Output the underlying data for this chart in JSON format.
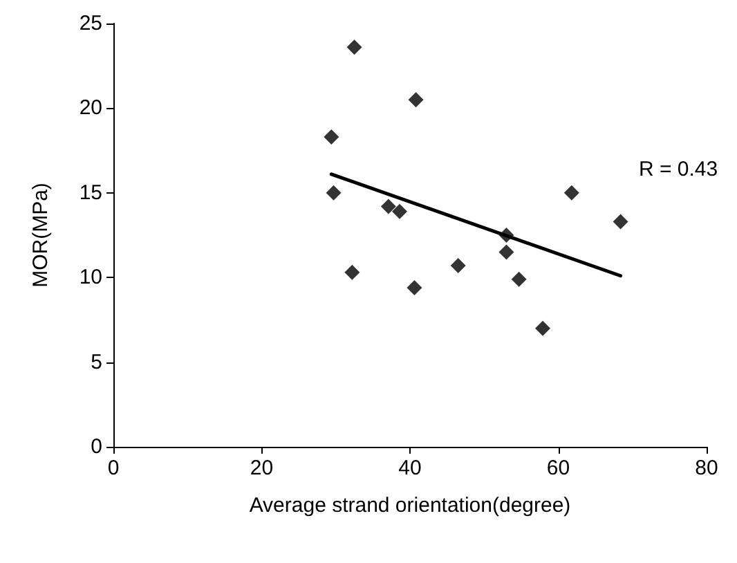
{
  "chart_data": {
    "type": "scatter",
    "xlabel": "Average strand orientation(degree)",
    "ylabel": "MOR(MPa)",
    "xlim": [
      0,
      80
    ],
    "xticks": [
      0,
      20,
      40,
      60,
      80
    ],
    "ylim": [
      0,
      25
    ],
    "yticks": [
      0,
      5,
      10,
      15,
      20,
      25
    ],
    "grid": false,
    "marker": "diamond",
    "series": [
      {
        "color": "#000000",
        "x": [
          32.5,
          40.8,
          29.4,
          29.7,
          37.1,
          38.6,
          32.2,
          40.6,
          46.5,
          53.0,
          53.0,
          54.7,
          57.9,
          61.8,
          68.4
        ],
        "values": [
          23.6,
          20.5,
          18.3,
          15.0,
          14.2,
          13.9,
          10.3,
          9.4,
          10.7,
          12.5,
          11.5,
          9.9,
          7.0,
          15.0,
          13.3
        ]
      },
      {
        "type": "line",
        "color": "#000000",
        "x": [
          29.4,
          68.4
        ],
        "values": [
          16.1,
          10.1
        ],
        "marker": "none",
        "line_style": "solid"
      }
    ],
    "annotations": [
      "R = 0.43"
    ]
  }
}
